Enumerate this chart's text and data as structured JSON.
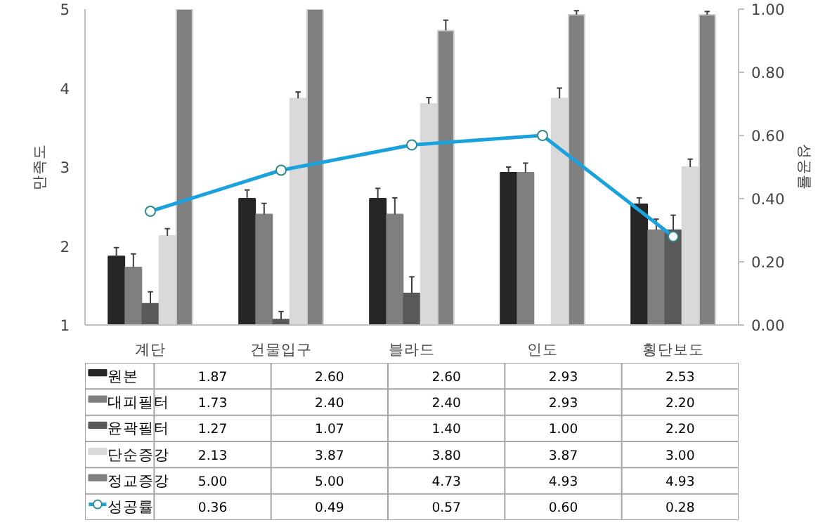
{
  "chart_data": {
    "type": "bar",
    "ylabel": "만족도",
    "y2label": "성공률",
    "categories": [
      "계단",
      "건물입구",
      "블라드",
      "인도",
      "횡단보도"
    ],
    "ylim": [
      1,
      5
    ],
    "yticks": [
      1,
      2,
      3,
      4,
      5
    ],
    "y2lim": [
      0,
      1
    ],
    "y2ticks": [
      {
        "value": 0,
        "label": "0.00"
      },
      {
        "value": 0.2,
        "label": "0.20"
      },
      {
        "value": 0.4,
        "label": "0.40"
      },
      {
        "value": 0.6,
        "label": "0.60"
      },
      {
        "value": 0.8,
        "label": "0.80"
      },
      {
        "value": 1,
        "label": "1.00"
      }
    ],
    "grid": false,
    "legend": "bottom left",
    "series": [
      {
        "name": "원본",
        "color": "#262626",
        "values": [
          1.87,
          2.6,
          2.6,
          2.93,
          2.53
        ],
        "value_labels": [
          "1.87",
          "2.60",
          "2.60",
          "2.93",
          "2.53"
        ],
        "errors": [
          [
            1.87,
            1.98
          ],
          [
            2.6,
            2.71
          ],
          [
            2.6,
            2.73
          ],
          [
            2.93,
            3.0
          ],
          [
            2.53,
            2.61
          ]
        ]
      },
      {
        "name": "대피필터",
        "color": "#7f7f7f",
        "values": [
          1.73,
          2.4,
          2.4,
          2.93,
          2.2
        ],
        "value_labels": [
          "1.73",
          "2.40",
          "2.40",
          "2.93",
          "2.20"
        ],
        "errors": [
          [
            1.73,
            1.9
          ],
          [
            2.4,
            2.54
          ],
          [
            2.4,
            2.61
          ],
          [
            2.93,
            3.05
          ],
          [
            2.2,
            2.34
          ]
        ]
      },
      {
        "name": "윤곽필터",
        "color": "#595959",
        "values": [
          1.27,
          1.07,
          1.4,
          1.0,
          2.2
        ],
        "value_labels": [
          "1.27",
          "1.07",
          "1.40",
          "1.00",
          "2.20"
        ],
        "errors": [
          [
            1.27,
            1.42
          ],
          [
            1.07,
            1.17
          ],
          [
            1.4,
            1.61
          ],
          null,
          [
            2.2,
            2.39
          ]
        ]
      },
      {
        "name": "단순증강",
        "color": "#d9d9d9",
        "values": [
          2.13,
          3.87,
          3.8,
          3.87,
          3.0
        ],
        "value_labels": [
          "2.13",
          "3.87",
          "3.80",
          "3.87",
          "3.00"
        ],
        "errors": [
          [
            2.13,
            2.22
          ],
          [
            3.87,
            3.95
          ],
          [
            3.8,
            3.88
          ],
          [
            3.87,
            4.0
          ],
          [
            3.0,
            3.1
          ]
        ]
      },
      {
        "name": "정교증강",
        "color": "#808080",
        "values": [
          5.0,
          5.0,
          4.73,
          4.93,
          4.93
        ],
        "value_labels": [
          "5.00",
          "5.00",
          "4.73",
          "4.93",
          "4.93"
        ],
        "errors": [
          null,
          null,
          [
            4.73,
            4.86
          ],
          [
            4.93,
            4.98
          ],
          [
            4.93,
            4.97
          ]
        ]
      },
      {
        "name": "성공률",
        "type": "line",
        "axis": "y2",
        "marker": "circle",
        "line_style": "solid",
        "color": "#1ba1db",
        "values": [
          0.36,
          0.49,
          0.57,
          0.6,
          0.28
        ],
        "value_labels": [
          "0.36",
          "0.49",
          "0.57",
          "0.60",
          "0.28"
        ]
      }
    ]
  }
}
